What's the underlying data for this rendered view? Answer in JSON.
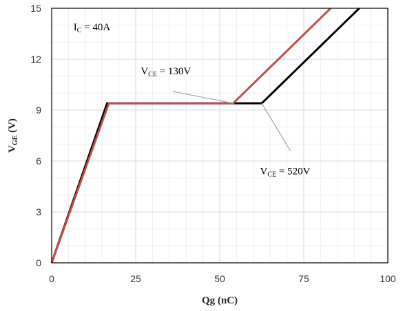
{
  "chart_data": {
    "type": "line",
    "xlabel": "Qg (nC)",
    "ylabel_main": "V",
    "ylabel_sub": "GE",
    "ylabel_unit": " (V)",
    "xlim": [
      0,
      100
    ],
    "ylim": [
      0,
      15
    ],
    "x_ticks": [
      0,
      25,
      50,
      75,
      100
    ],
    "y_ticks": [
      0,
      3,
      6,
      9,
      12,
      15
    ],
    "x_minor_step": 5,
    "y_minor_step": 1,
    "grid": true,
    "series": [
      {
        "color": "#000000",
        "points": [
          [
            0,
            0
          ],
          [
            16.5,
            9.4
          ],
          [
            62.5,
            9.4
          ],
          [
            91.5,
            15
          ]
        ]
      },
      {
        "color": "#c0504d",
        "points": [
          [
            0,
            0
          ],
          [
            17,
            9.4
          ],
          [
            54,
            9.4
          ],
          [
            83,
            15
          ]
        ]
      }
    ],
    "annotations": [
      {
        "main": "I",
        "sub": "C",
        "rest": " = 40A",
        "x": 6.5,
        "y": 13.7
      },
      {
        "main": "V",
        "sub": "CE",
        "rest": " = 130V",
        "x": 26.5,
        "y": 11.1,
        "leader": [
          [
            36,
            10.1
          ],
          [
            54,
            9.4
          ]
        ]
      },
      {
        "main": "V",
        "sub": "CE",
        "rest": " = 520V",
        "x": 62,
        "y": 5.2,
        "leader": [
          [
            71,
            6.6
          ],
          [
            62.5,
            9.4
          ]
        ]
      }
    ],
    "leader_color": "#a6a6a6"
  }
}
